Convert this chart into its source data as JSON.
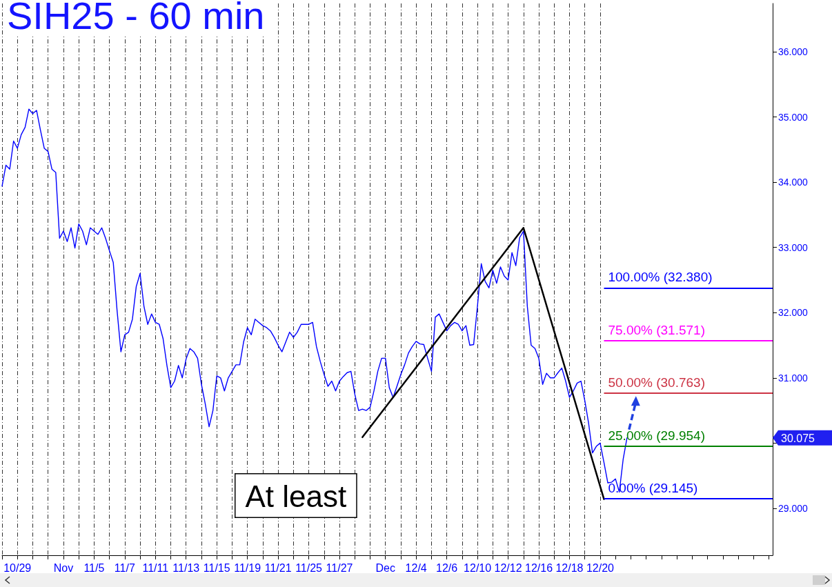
{
  "chart_data": {
    "type": "line",
    "title": "SIH25 - 60 min",
    "categories": [
      null,
      null,
      null,
      null,
      "10/29",
      null,
      null,
      null,
      null,
      null,
      null,
      null,
      null,
      null,
      null,
      null,
      "Nov",
      null,
      null,
      null,
      null,
      null,
      null,
      null,
      "11/5",
      null,
      null,
      null,
      null,
      null,
      null,
      null,
      "11/7",
      null,
      null,
      null,
      null,
      null,
      null,
      null,
      "11/11",
      null,
      null,
      null,
      null,
      null,
      null,
      null,
      "11/13",
      null,
      null,
      null,
      null,
      null,
      null,
      null,
      "11/15",
      null,
      null,
      null,
      null,
      null,
      null,
      null,
      "11/19",
      null,
      null,
      null,
      null,
      null,
      null,
      null,
      "11/21",
      null,
      null,
      null,
      null,
      null,
      null,
      null,
      "11/25",
      null,
      null,
      null,
      null,
      null,
      null,
      null,
      "11/27",
      null,
      null,
      null,
      null,
      null,
      null,
      null,
      null,
      null,
      null,
      null,
      "Dec",
      null,
      null,
      null,
      null,
      null,
      null,
      null,
      "12/4",
      null,
      null,
      null,
      null,
      null,
      null,
      null,
      "12/6",
      null,
      null,
      null,
      null,
      null,
      null,
      null,
      "12/10",
      null,
      null,
      null,
      null,
      null,
      null,
      null,
      "12/12",
      null,
      null,
      null,
      null,
      null,
      null,
      null,
      "12/16",
      null,
      null,
      null,
      null,
      null,
      null,
      null,
      "12/18",
      null,
      null,
      null,
      null,
      null,
      null,
      null,
      "12/20",
      null,
      null,
      null,
      null,
      null,
      null,
      null,
      null,
      null,
      null,
      null,
      null,
      null,
      null,
      null,
      null,
      null,
      null,
      null,
      null,
      null,
      null,
      null,
      null,
      null,
      null,
      null,
      null,
      null,
      null,
      null,
      null,
      null,
      null,
      null,
      null,
      null,
      null,
      null,
      null,
      null,
      null,
      null,
      null,
      null
    ],
    "ylim": [
      28.28,
      36.74
    ],
    "yticks": [
      {
        "value": 29,
        "label": "29.000"
      },
      {
        "value": 30,
        "label": null
      },
      {
        "value": 31,
        "label": "31.000"
      },
      {
        "value": 32,
        "label": "32.000"
      },
      {
        "value": 33,
        "label": "33.000"
      },
      {
        "value": 34,
        "label": "34.000"
      },
      {
        "value": 35,
        "label": "35.000"
      },
      {
        "value": 36,
        "label": "36.000"
      }
    ],
    "grid": "x",
    "marker": "none",
    "line_style": "solid",
    "series": [
      {
        "color": "#0000ff",
        "values": [
          33.94,
          34.26,
          34.2,
          34.63,
          34.52,
          34.73,
          34.84,
          35.12,
          35.05,
          35.1,
          34.8,
          34.52,
          34.47,
          34.2,
          34.15,
          33.14,
          33.25,
          33.09,
          33.3,
          32.99,
          33.36,
          33.25,
          33.04,
          33.3,
          33.25,
          33.2,
          33.3,
          33.14,
          32.95,
          32.77,
          32.03,
          31.4,
          31.66,
          31.7,
          31.9,
          32.4,
          32.6,
          32.1,
          31.82,
          31.98,
          31.85,
          31.82,
          31.6,
          31.19,
          30.85,
          30.95,
          31.19,
          31.0,
          31.29,
          31.45,
          31.4,
          31.3,
          30.9,
          30.6,
          30.25,
          30.5,
          31.03,
          31.0,
          30.8,
          31.0,
          31.1,
          31.2,
          31.2,
          31.55,
          31.77,
          31.66,
          31.9,
          31.85,
          31.8,
          31.77,
          31.72,
          31.62,
          31.5,
          31.4,
          31.55,
          31.7,
          31.62,
          31.7,
          31.82,
          31.82,
          31.82,
          31.85,
          31.48,
          31.25,
          31.05,
          30.87,
          30.95,
          30.8,
          30.95,
          31.02,
          31.08,
          31.1,
          30.75,
          30.5,
          30.52,
          30.5,
          30.55,
          30.8,
          31.1,
          31.3,
          31.3,
          30.85,
          30.7,
          30.87,
          31.05,
          31.2,
          31.38,
          31.48,
          31.56,
          31.52,
          31.51,
          31.3,
          31.1,
          31.93,
          31.98,
          31.85,
          31.72,
          31.8,
          31.85,
          31.82,
          31.72,
          31.8,
          31.5,
          31.51,
          32.1,
          32.75,
          32.48,
          32.38,
          32.65,
          32.45,
          32.7,
          32.56,
          32.5,
          32.92,
          32.72,
          33.15,
          33.25,
          32.1,
          31.5,
          31.45,
          31.3,
          30.9,
          31.07,
          31.0,
          31.0,
          31.08,
          31.15,
          30.95,
          30.7,
          30.8,
          30.92,
          30.95,
          30.65,
          30.3,
          29.85,
          29.95,
          30.0,
          29.7,
          29.39,
          29.4,
          29.45,
          29.25,
          29.75,
          30.08,
          null,
          null,
          null,
          null,
          null,
          null,
          null,
          null,
          null,
          null,
          null,
          null,
          null,
          null,
          null,
          null,
          null,
          null,
          null,
          null,
          null,
          null,
          null,
          null,
          null,
          null,
          null,
          null,
          null,
          null,
          null,
          null,
          null,
          null,
          null,
          null,
          null,
          null
        ]
      },
      {
        "color": "#000000",
        "values": [
          null,
          null,
          null,
          null,
          null,
          null,
          null,
          null,
          null,
          null,
          null,
          null,
          null,
          null,
          null,
          null,
          null,
          null,
          null,
          null,
          null,
          null,
          null,
          null,
          null,
          null,
          null,
          null,
          null,
          null,
          null,
          null,
          null,
          null,
          null,
          null,
          null,
          null,
          null,
          null,
          null,
          null,
          null,
          null,
          null,
          null,
          null,
          null,
          null,
          null,
          null,
          null,
          null,
          null,
          null,
          null,
          null,
          null,
          null,
          null,
          null,
          null,
          null,
          null,
          null,
          null,
          null,
          null,
          null,
          null,
          null,
          null,
          null,
          null,
          null,
          null,
          null,
          null,
          null,
          null,
          null,
          null,
          null,
          null,
          null,
          null,
          null,
          null,
          null,
          null,
          null,
          null,
          null,
          null,
          30.09,
          null,
          null,
          null,
          null,
          null,
          null,
          null,
          null,
          null,
          null,
          null,
          null,
          null,
          null,
          null,
          null,
          null,
          null,
          null,
          null,
          null,
          null,
          null,
          null,
          null,
          null,
          null,
          null,
          null,
          null,
          null,
          null,
          null,
          null,
          null,
          null,
          null,
          null,
          null,
          null,
          null,
          33.3,
          null,
          null,
          null,
          null,
          null,
          null,
          null,
          null,
          null,
          null,
          null,
          null,
          null,
          null,
          null,
          null,
          null,
          null,
          null,
          null,
          29.14,
          null,
          null,
          null,
          null,
          null,
          null,
          null,
          null,
          null,
          null,
          null,
          null,
          null,
          null,
          null,
          null,
          null,
          null,
          null,
          null,
          null,
          null,
          null,
          null,
          null,
          null,
          null,
          null,
          null,
          null,
          null,
          null,
          null,
          null,
          null,
          null,
          null,
          null,
          null,
          null,
          null,
          null,
          null,
          null
        ]
      }
    ],
    "ref_lines": [
      {
        "axis": "y",
        "value": 32.38,
        "label": "100.00% (32.380)",
        "color": "#0000ff"
      },
      {
        "axis": "y",
        "value": 31.571,
        "label": "75.00% (31.571)",
        "color": "#ff00ff"
      },
      {
        "axis": "y",
        "value": 30.763,
        "label": "50.00% (30.763)",
        "color": "#cc3344"
      },
      {
        "axis": "y",
        "value": 29.954,
        "label": "25.00% (29.954)",
        "color": "#008000"
      },
      {
        "axis": "y",
        "value": 29.145,
        "label": "0.00% (29.145)",
        "color": "#0000ff"
      }
    ],
    "annotations": [
      "At least",
      "30.075"
    ]
  }
}
